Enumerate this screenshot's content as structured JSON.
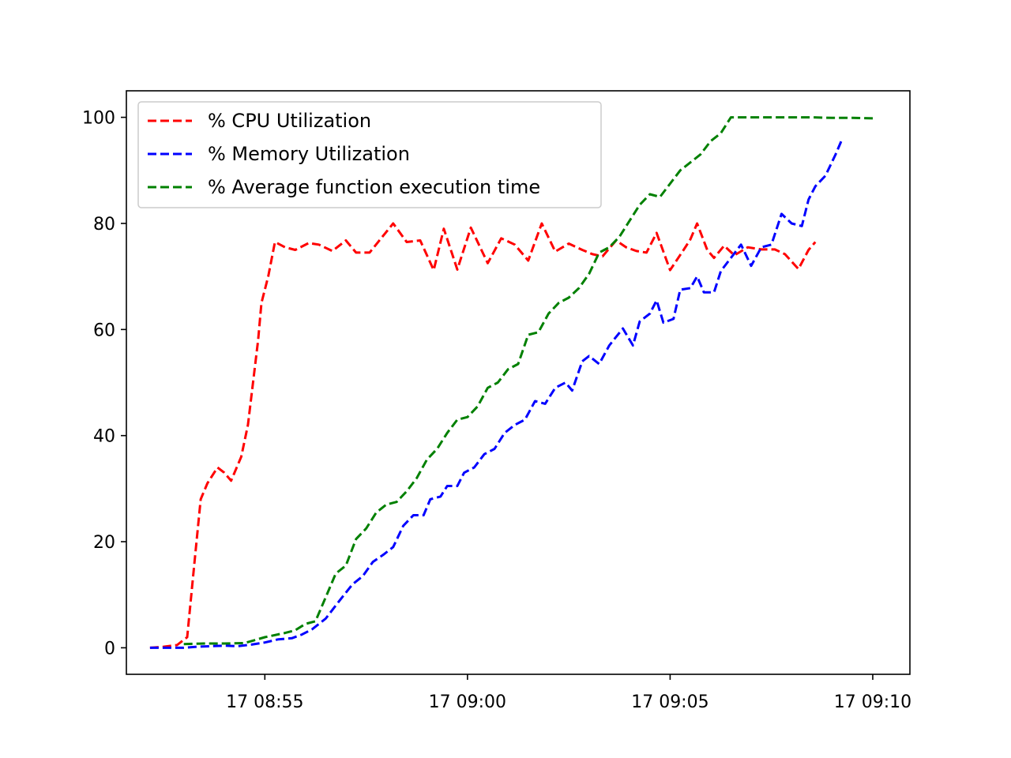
{
  "chart_data": {
    "type": "line",
    "title": "",
    "xlabel": "",
    "ylabel": "",
    "x_unit": "time",
    "xlim": [
      "08:51:35",
      "09:10:55"
    ],
    "ylim": [
      -5,
      105
    ],
    "x_ticks": [
      {
        "time": "08:55",
        "label": "17 08:55"
      },
      {
        "time": "09:00",
        "label": "17 09:00"
      },
      {
        "time": "09:05",
        "label": "17 09:05"
      },
      {
        "time": "09:10",
        "label": "17 09:10"
      }
    ],
    "y_ticks": [
      0,
      20,
      40,
      60,
      80,
      100
    ],
    "grid": false,
    "legend_position": "top-left",
    "series": [
      {
        "name": "% CPU Utilization",
        "color": "#ff0000",
        "points": [
          [
            "08:52:10",
            0
          ],
          [
            "08:52:30",
            0.2
          ],
          [
            "08:52:50",
            0.5
          ],
          [
            "08:53:05",
            2
          ],
          [
            "08:53:15",
            15
          ],
          [
            "08:53:25",
            28
          ],
          [
            "08:53:35",
            31
          ],
          [
            "08:53:50",
            34
          ],
          [
            "08:54:00",
            33
          ],
          [
            "08:54:10",
            31.5
          ],
          [
            "08:54:25",
            36
          ],
          [
            "08:54:35",
            42
          ],
          [
            "08:54:50",
            58
          ],
          [
            "08:54:55",
            65
          ],
          [
            "08:55:05",
            70
          ],
          [
            "08:55:15",
            76.5
          ],
          [
            "08:55:30",
            75.5
          ],
          [
            "08:55:45",
            75
          ],
          [
            "08:56:05",
            76.3
          ],
          [
            "08:56:20",
            76
          ],
          [
            "08:56:40",
            74.8
          ],
          [
            "08:57:00",
            76.8
          ],
          [
            "08:57:15",
            74.5
          ],
          [
            "08:57:35",
            74.5
          ],
          [
            "08:58:10",
            80
          ],
          [
            "08:58:30",
            76.5
          ],
          [
            "08:58:50",
            76.8
          ],
          [
            "08:59:10",
            71.2
          ],
          [
            "08:59:25",
            79
          ],
          [
            "08:59:45",
            71.3
          ],
          [
            "09:00:05",
            79.2
          ],
          [
            "09:00:30",
            72.5
          ],
          [
            "09:00:50",
            77.2
          ],
          [
            "09:01:10",
            76
          ],
          [
            "09:01:30",
            73
          ],
          [
            "09:01:50",
            80
          ],
          [
            "09:02:10",
            74.7
          ],
          [
            "09:02:30",
            76.2
          ],
          [
            "09:02:50",
            75
          ],
          [
            "09:03:05",
            74.2
          ],
          [
            "09:03:20",
            73.8
          ],
          [
            "09:03:40",
            76.8
          ],
          [
            "09:03:55",
            75.5
          ],
          [
            "09:04:10",
            74.8
          ],
          [
            "09:04:25",
            74.5
          ],
          [
            "09:04:40",
            78.2
          ],
          [
            "09:05:00",
            71.2
          ],
          [
            "09:05:20",
            75
          ],
          [
            "09:05:30",
            77
          ],
          [
            "09:05:40",
            80
          ],
          [
            "09:05:55",
            75
          ],
          [
            "09:06:05",
            73.5
          ],
          [
            "09:06:20",
            75.8
          ],
          [
            "09:06:35",
            74
          ],
          [
            "09:06:55",
            75.5
          ],
          [
            "09:07:15",
            75.1
          ],
          [
            "09:07:35",
            75.1
          ],
          [
            "09:07:50",
            74.2
          ],
          [
            "09:08:10",
            71.4
          ],
          [
            "09:08:25",
            75
          ],
          [
            "09:08:35",
            76.5
          ]
        ]
      },
      {
        "name": "% Memory Utilization",
        "color": "#0000ff",
        "points": [
          [
            "08:52:10",
            0
          ],
          [
            "08:52:30",
            0
          ],
          [
            "08:52:45",
            0
          ],
          [
            "08:53:00",
            0
          ],
          [
            "08:53:20",
            0.2
          ],
          [
            "08:53:40",
            0.3
          ],
          [
            "08:54:00",
            0.4
          ],
          [
            "08:54:20",
            0.3
          ],
          [
            "08:54:40",
            0.6
          ],
          [
            "08:55:00",
            1
          ],
          [
            "08:55:20",
            1.6
          ],
          [
            "08:55:40",
            1.8
          ],
          [
            "08:55:55",
            2.5
          ],
          [
            "08:56:10",
            3.5
          ],
          [
            "08:56:30",
            5.5
          ],
          [
            "08:56:50",
            8.8
          ],
          [
            "08:57:10",
            12
          ],
          [
            "08:57:25",
            13.5
          ],
          [
            "08:57:40",
            16.2
          ],
          [
            "08:57:55",
            17.5
          ],
          [
            "08:58:10",
            19
          ],
          [
            "08:58:25",
            23
          ],
          [
            "08:58:40",
            25
          ],
          [
            "08:58:55",
            25
          ],
          [
            "08:59:05",
            28
          ],
          [
            "08:59:20",
            28.5
          ],
          [
            "08:59:30",
            30.5
          ],
          [
            "08:59:45",
            30.5
          ],
          [
            "08:59:55",
            33
          ],
          [
            "09:00:10",
            34
          ],
          [
            "09:00:25",
            36.5
          ],
          [
            "09:00:40",
            37.5
          ],
          [
            "09:00:55",
            40.5
          ],
          [
            "09:01:10",
            42
          ],
          [
            "09:01:25",
            43
          ],
          [
            "09:01:40",
            46.5
          ],
          [
            "09:01:55",
            46
          ],
          [
            "09:02:10",
            49
          ],
          [
            "09:02:25",
            50
          ],
          [
            "09:02:35",
            48.5
          ],
          [
            "09:02:50",
            54
          ],
          [
            "09:03:00",
            55
          ],
          [
            "09:03:15",
            53.5
          ],
          [
            "09:03:30",
            57
          ],
          [
            "09:03:50",
            60.2
          ],
          [
            "09:04:05",
            57
          ],
          [
            "09:04:15",
            61.5
          ],
          [
            "09:04:30",
            63
          ],
          [
            "09:04:40",
            65.5
          ],
          [
            "09:04:50",
            61.3
          ],
          [
            "09:05:05",
            62
          ],
          [
            "09:05:15",
            67.5
          ],
          [
            "09:05:30",
            67.8
          ],
          [
            "09:05:40",
            70
          ],
          [
            "09:05:50",
            67
          ],
          [
            "09:06:05",
            67
          ],
          [
            "09:06:15",
            71
          ],
          [
            "09:06:30",
            73.5
          ],
          [
            "09:06:45",
            76
          ],
          [
            "09:07:00",
            72
          ],
          [
            "09:07:15",
            75.5
          ],
          [
            "09:07:30",
            76
          ],
          [
            "09:07:45",
            81.8
          ],
          [
            "09:08:00",
            80
          ],
          [
            "09:08:15",
            79.5
          ],
          [
            "09:08:25",
            84.5
          ],
          [
            "09:08:35",
            87
          ],
          [
            "09:08:50",
            89
          ],
          [
            "09:09:05",
            93
          ],
          [
            "09:09:15",
            96
          ]
        ]
      },
      {
        "name": "% Average function execution time",
        "color": "#008000",
        "points": [
          [
            "08:53:00",
            0.7
          ],
          [
            "08:53:30",
            0.8
          ],
          [
            "08:54:00",
            0.8
          ],
          [
            "08:54:30",
            0.9
          ],
          [
            "08:55:00",
            2
          ],
          [
            "08:55:30",
            2.8
          ],
          [
            "08:55:45",
            3.3
          ],
          [
            "08:56:00",
            4.5
          ],
          [
            "08:56:15",
            5
          ],
          [
            "08:56:30",
            9.5
          ],
          [
            "08:56:45",
            14
          ],
          [
            "08:57:00",
            15.5
          ],
          [
            "08:57:15",
            20.5
          ],
          [
            "08:57:30",
            22.5
          ],
          [
            "08:57:45",
            25.5
          ],
          [
            "08:58:00",
            27
          ],
          [
            "08:58:15",
            27.5
          ],
          [
            "08:58:30",
            29.5
          ],
          [
            "08:58:45",
            32
          ],
          [
            "08:59:00",
            35.5
          ],
          [
            "08:59:15",
            37.5
          ],
          [
            "08:59:30",
            40.5
          ],
          [
            "08:59:45",
            43
          ],
          [
            "09:00:00",
            43.5
          ],
          [
            "09:00:15",
            45.5
          ],
          [
            "09:00:30",
            49
          ],
          [
            "09:00:45",
            50
          ],
          [
            "09:01:00",
            52.5
          ],
          [
            "09:01:15",
            53.5
          ],
          [
            "09:01:30",
            59
          ],
          [
            "09:01:45",
            59.5
          ],
          [
            "09:02:00",
            63
          ],
          [
            "09:02:15",
            65
          ],
          [
            "09:02:30",
            66
          ],
          [
            "09:02:45",
            67.8
          ],
          [
            "09:03:00",
            70.5
          ],
          [
            "09:03:15",
            74.5
          ],
          [
            "09:03:30",
            75.5
          ],
          [
            "09:03:45",
            77.5
          ],
          [
            "09:04:00",
            80.5
          ],
          [
            "09:04:15",
            83.5
          ],
          [
            "09:04:30",
            85.5
          ],
          [
            "09:04:45",
            85
          ],
          [
            "09:05:00",
            87.5
          ],
          [
            "09:05:15",
            90
          ],
          [
            "09:05:30",
            91.5
          ],
          [
            "09:05:45",
            93
          ],
          [
            "09:06:00",
            95.5
          ],
          [
            "09:06:15",
            97
          ],
          [
            "09:06:30",
            100
          ],
          [
            "09:07:00",
            100
          ],
          [
            "09:07:30",
            100
          ],
          [
            "09:08:00",
            100
          ],
          [
            "09:08:30",
            100
          ],
          [
            "09:09:00",
            99.9
          ],
          [
            "09:09:30",
            99.9
          ],
          [
            "09:10:00",
            99.8
          ]
        ]
      }
    ]
  }
}
